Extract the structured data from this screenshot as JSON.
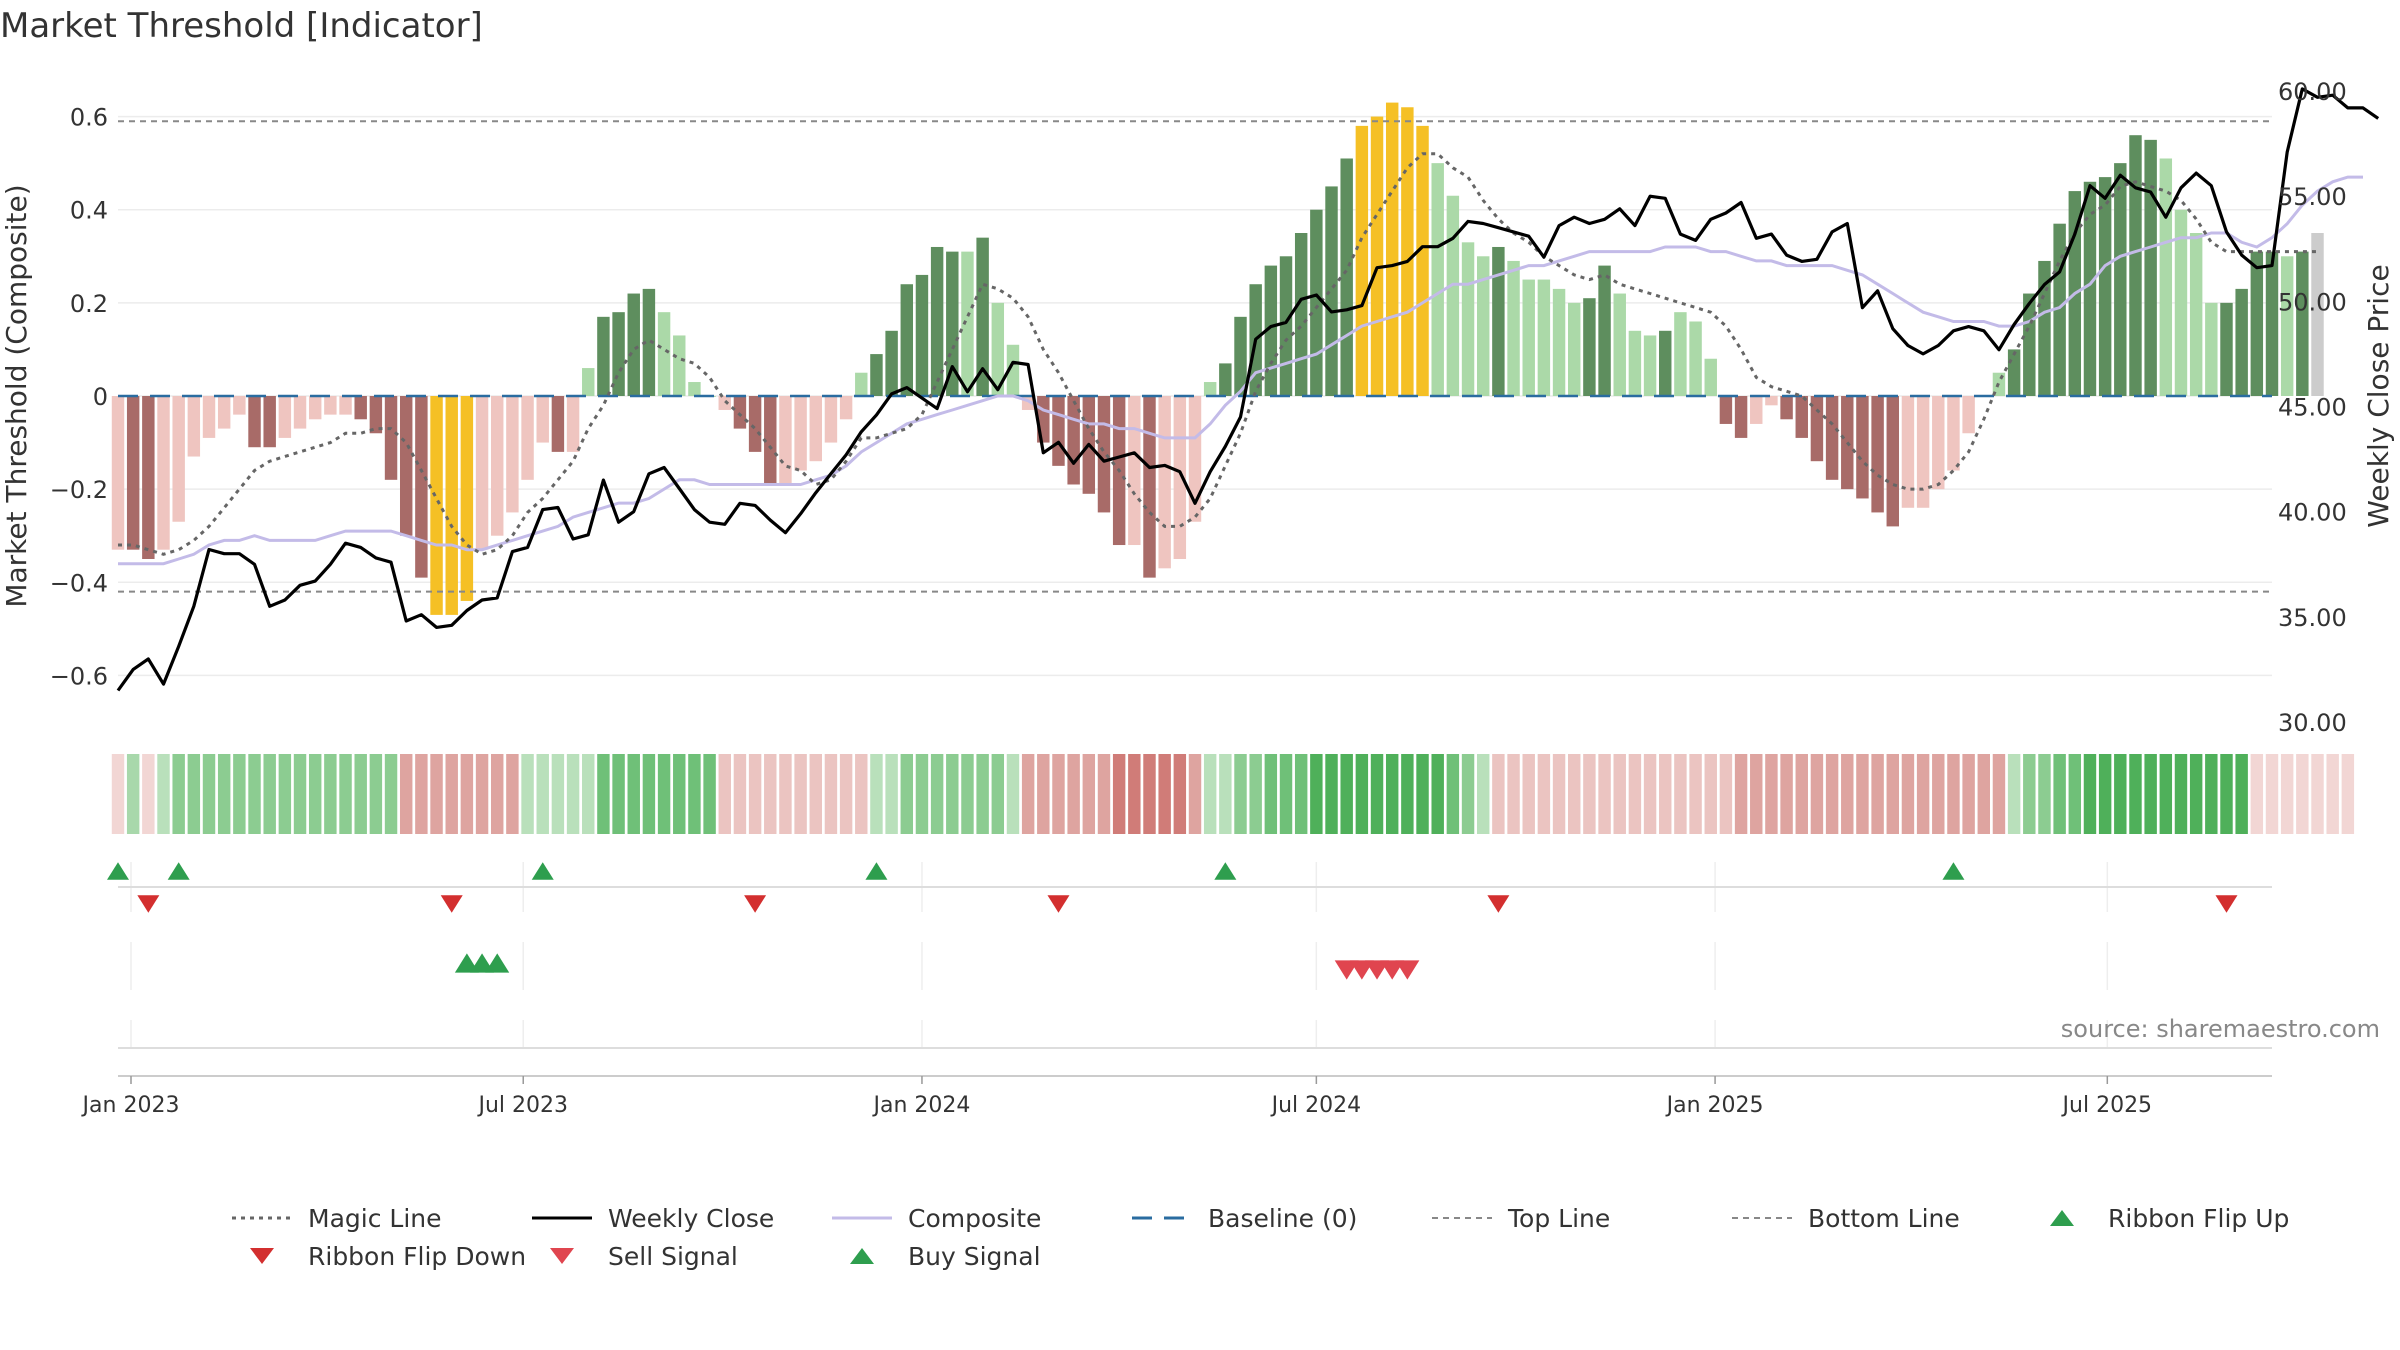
{
  "title": "Market Threshold [Indicator]",
  "source": "source: sharemaestro.com",
  "chart_data": {
    "type": "bar",
    "title": "Market Threshold [Indicator]",
    "ylabel": "Market Threshold (Composite)",
    "ylabel_right": "Weekly Close Price",
    "ylim": [
      -0.7,
      0.7
    ],
    "ylim_right": [
      30,
      61
    ],
    "yticks": [
      -0.6,
      -0.4,
      -0.2,
      0,
      0.2,
      0.4,
      0.6
    ],
    "ytick_labels": [
      "−0.6",
      "−0.4",
      "−0.2",
      "0",
      "0.2",
      "0.4",
      "0.6"
    ],
    "yticks_right": [
      30,
      35,
      40,
      45,
      50,
      55,
      60
    ],
    "ytick_labels_right": [
      "30.00",
      "35.00",
      "40.00",
      "45.00",
      "50.00",
      "55.00",
      "60.00"
    ],
    "xlim": [
      "2022-12-26",
      "2025-09-15"
    ],
    "x_ticks": [
      "2023-01-01",
      "2023-07-01",
      "2024-01-01",
      "2024-07-01",
      "2025-01-01",
      "2025-07-01"
    ],
    "x_tick_labels": [
      "Jan 2023",
      "Jul 2023",
      "Jan 2024",
      "Jul 2024",
      "Jan 2025",
      "Jul 2025"
    ],
    "grid": true,
    "legend_position": "bottom",
    "top_line": 0.59,
    "bottom_line": -0.42,
    "baseline": 0,
    "start_date": "2022-12-26",
    "composite_histogram": [
      -0.33,
      -0.33,
      -0.35,
      -0.33,
      -0.27,
      -0.13,
      -0.09,
      -0.07,
      -0.04,
      -0.11,
      -0.11,
      -0.09,
      -0.07,
      -0.05,
      -0.04,
      -0.04,
      -0.05,
      -0.08,
      -0.18,
      -0.3,
      -0.39,
      -0.47,
      -0.47,
      -0.44,
      -0.33,
      -0.3,
      -0.25,
      -0.18,
      -0.1,
      -0.12,
      -0.12,
      0.06,
      0.17,
      0.18,
      0.22,
      0.23,
      0.18,
      0.13,
      0.03,
      0.0,
      -0.03,
      -0.07,
      -0.12,
      -0.19,
      -0.19,
      -0.16,
      -0.14,
      -0.1,
      -0.05,
      0.05,
      0.09,
      0.14,
      0.24,
      0.26,
      0.32,
      0.31,
      0.31,
      0.34,
      0.2,
      0.11,
      -0.03,
      -0.1,
      -0.15,
      -0.19,
      -0.21,
      -0.25,
      -0.32,
      -0.32,
      -0.39,
      -0.37,
      -0.35,
      -0.27,
      0.03,
      0.07,
      0.17,
      0.24,
      0.28,
      0.3,
      0.35,
      0.4,
      0.45,
      0.51,
      0.58,
      0.6,
      0.63,
      0.62,
      0.58,
      0.5,
      0.43,
      0.33,
      0.3,
      0.32,
      0.29,
      0.25,
      0.25,
      0.23,
      0.2,
      0.21,
      0.28,
      0.22,
      0.14,
      0.13,
      0.14,
      0.18,
      0.16,
      0.08,
      -0.06,
      -0.09,
      -0.06,
      -0.02,
      -0.05,
      -0.09,
      -0.14,
      -0.18,
      -0.2,
      -0.22,
      -0.25,
      -0.28,
      -0.24,
      -0.24,
      -0.2,
      -0.16,
      -0.08,
      0.0,
      0.05,
      0.1,
      0.22,
      0.29,
      0.37,
      0.44,
      0.46,
      0.47,
      0.5,
      0.56,
      0.55,
      0.51,
      0.4,
      0.35,
      0.2,
      0.2,
      0.23,
      0.31,
      0.31,
      0.3,
      0.31,
      0.35
    ],
    "weekly_close": [
      31.5,
      32.5,
      33.0,
      31.8,
      33.6,
      35.5,
      38.2,
      38.0,
      38.0,
      37.5,
      35.5,
      35.8,
      36.5,
      36.7,
      37.5,
      38.5,
      38.3,
      37.8,
      37.6,
      34.8,
      35.1,
      34.5,
      34.6,
      35.3,
      35.8,
      35.9,
      38.1,
      38.3,
      40.1,
      40.2,
      38.7,
      38.9,
      41.5,
      39.5,
      40.0,
      41.8,
      42.1,
      41.1,
      40.1,
      39.5,
      39.4,
      40.4,
      40.3,
      39.6,
      39.0,
      39.9,
      40.9,
      41.8,
      42.7,
      43.8,
      44.6,
      45.6,
      45.9,
      45.4,
      44.9,
      46.9,
      45.7,
      46.8,
      45.8,
      47.1,
      47.0,
      42.8,
      43.3,
      42.3,
      43.2,
      42.4,
      42.6,
      42.8,
      42.1,
      42.2,
      41.9,
      40.4,
      41.9,
      43.1,
      44.5,
      48.2,
      48.8,
      49.0,
      50.1,
      50.3,
      49.5,
      49.6,
      49.8,
      51.6,
      51.7,
      51.9,
      52.6,
      52.6,
      53.0,
      53.8,
      53.7,
      53.5,
      53.3,
      53.1,
      52.1,
      53.6,
      54.0,
      53.7,
      53.9,
      54.4,
      53.6,
      55.0,
      54.9,
      53.2,
      52.9,
      53.9,
      54.2,
      54.7,
      53.0,
      53.2,
      52.2,
      51.9,
      52.0,
      53.3,
      53.7,
      49.7,
      50.5,
      48.7,
      47.9,
      47.5,
      47.9,
      48.6,
      48.8,
      48.6,
      47.7,
      48.9,
      49.9,
      50.8,
      51.4,
      53.2,
      55.5,
      54.9,
      56.0,
      55.4,
      55.2,
      54.0,
      55.4,
      56.1,
      55.5,
      53.3,
      52.2,
      51.6,
      51.7,
      57.1,
      60.1,
      59.7,
      59.8,
      59.2,
      59.2,
      58.7
    ],
    "composite_line": [
      -0.36,
      -0.36,
      -0.36,
      -0.36,
      -0.35,
      -0.34,
      -0.32,
      -0.31,
      -0.31,
      -0.3,
      -0.31,
      -0.31,
      -0.31,
      -0.31,
      -0.3,
      -0.29,
      -0.29,
      -0.29,
      -0.29,
      -0.3,
      -0.31,
      -0.32,
      -0.32,
      -0.33,
      -0.33,
      -0.32,
      -0.31,
      -0.3,
      -0.29,
      -0.28,
      -0.26,
      -0.25,
      -0.24,
      -0.23,
      -0.23,
      -0.22,
      -0.2,
      -0.18,
      -0.18,
      -0.19,
      -0.19,
      -0.19,
      -0.19,
      -0.19,
      -0.19,
      -0.19,
      -0.18,
      -0.17,
      -0.15,
      -0.12,
      -0.1,
      -0.08,
      -0.06,
      -0.05,
      -0.04,
      -0.03,
      -0.02,
      -0.01,
      0.0,
      0.0,
      -0.01,
      -0.03,
      -0.04,
      -0.05,
      -0.06,
      -0.06,
      -0.07,
      -0.07,
      -0.08,
      -0.09,
      -0.09,
      -0.09,
      -0.06,
      -0.02,
      0.01,
      0.05,
      0.06,
      0.07,
      0.08,
      0.09,
      0.11,
      0.13,
      0.15,
      0.16,
      0.17,
      0.18,
      0.2,
      0.22,
      0.24,
      0.24,
      0.25,
      0.26,
      0.27,
      0.28,
      0.28,
      0.29,
      0.3,
      0.31,
      0.31,
      0.31,
      0.31,
      0.31,
      0.32,
      0.32,
      0.32,
      0.31,
      0.31,
      0.3,
      0.29,
      0.29,
      0.28,
      0.28,
      0.28,
      0.28,
      0.27,
      0.26,
      0.24,
      0.22,
      0.2,
      0.18,
      0.17,
      0.16,
      0.16,
      0.16,
      0.15,
      0.15,
      0.16,
      0.18,
      0.19,
      0.22,
      0.24,
      0.28,
      0.3,
      0.31,
      0.32,
      0.33,
      0.34,
      0.34,
      0.35,
      0.35,
      0.33,
      0.32,
      0.34,
      0.37,
      0.41,
      0.44,
      0.46,
      0.47,
      0.47
    ],
    "magic_line": [
      -0.32,
      -0.32,
      -0.33,
      -0.34,
      -0.33,
      -0.31,
      -0.28,
      -0.24,
      -0.2,
      -0.16,
      -0.14,
      -0.13,
      -0.12,
      -0.11,
      -0.1,
      -0.08,
      -0.08,
      -0.07,
      -0.07,
      -0.1,
      -0.16,
      -0.22,
      -0.28,
      -0.32,
      -0.34,
      -0.33,
      -0.3,
      -0.25,
      -0.22,
      -0.18,
      -0.14,
      -0.07,
      -0.02,
      0.05,
      0.1,
      0.12,
      0.1,
      0.08,
      0.07,
      0.04,
      -0.01,
      -0.04,
      -0.07,
      -0.11,
      -0.15,
      -0.16,
      -0.19,
      -0.18,
      -0.14,
      -0.09,
      -0.09,
      -0.08,
      -0.07,
      -0.04,
      0.03,
      0.1,
      0.17,
      0.24,
      0.23,
      0.21,
      0.17,
      0.1,
      0.05,
      -0.01,
      -0.07,
      -0.12,
      -0.16,
      -0.21,
      -0.25,
      -0.28,
      -0.28,
      -0.26,
      -0.22,
      -0.15,
      -0.08,
      0.01,
      0.07,
      0.12,
      0.15,
      0.19,
      0.23,
      0.27,
      0.34,
      0.39,
      0.44,
      0.49,
      0.52,
      0.52,
      0.49,
      0.47,
      0.42,
      0.38,
      0.35,
      0.33,
      0.3,
      0.28,
      0.26,
      0.25,
      0.26,
      0.24,
      0.23,
      0.22,
      0.21,
      0.2,
      0.19,
      0.18,
      0.15,
      0.1,
      0.04,
      0.02,
      0.01,
      0.0,
      -0.03,
      -0.06,
      -0.1,
      -0.14,
      -0.17,
      -0.19,
      -0.2,
      -0.2,
      -0.19,
      -0.16,
      -0.12,
      -0.05,
      0.03,
      0.09,
      0.15,
      0.22,
      0.29,
      0.35,
      0.39,
      0.41,
      0.45,
      0.46,
      0.45,
      0.44,
      0.42,
      0.38,
      0.33,
      0.31,
      0.31,
      0.31,
      0.31,
      0.31,
      0.31,
      0.31
    ],
    "bar_colors": [
      "#efc5c0",
      "#a86b68",
      "#a86b68",
      "#efc5c0",
      "#efc5c0",
      "#efc5c0",
      "#efc5c0",
      "#efc5c0",
      "#efc5c0",
      "#a86b68",
      "#a86b68",
      "#efc5c0",
      "#efc5c0",
      "#efc5c0",
      "#efc5c0",
      "#efc5c0",
      "#a86b68",
      "#a86b68",
      "#a86b68",
      "#a86b68",
      "#a86b68",
      "#f5c025",
      "#f5c025",
      "#f5c025",
      "#efc5c0",
      "#efc5c0",
      "#efc5c0",
      "#efc5c0",
      "#efc5c0",
      "#a86b68",
      "#efc5c0",
      "#abd9a8",
      "#5e8e5e",
      "#5e8e5e",
      "#5e8e5e",
      "#5e8e5e",
      "#abd9a8",
      "#abd9a8",
      "#abd9a8",
      "#abd9a8",
      "#efc5c0",
      "#a86b68",
      "#a86b68",
      "#a86b68",
      "#efc5c0",
      "#efc5c0",
      "#efc5c0",
      "#efc5c0",
      "#efc5c0",
      "#abd9a8",
      "#5e8e5e",
      "#5e8e5e",
      "#5e8e5e",
      "#5e8e5e",
      "#5e8e5e",
      "#5e8e5e",
      "#abd9a8",
      "#5e8e5e",
      "#abd9a8",
      "#abd9a8",
      "#efc5c0",
      "#a86b68",
      "#a86b68",
      "#a86b68",
      "#a86b68",
      "#a86b68",
      "#a86b68",
      "#efc5c0",
      "#a86b68",
      "#efc5c0",
      "#efc5c0",
      "#efc5c0",
      "#abd9a8",
      "#5e8e5e",
      "#5e8e5e",
      "#5e8e5e",
      "#5e8e5e",
      "#5e8e5e",
      "#5e8e5e",
      "#5e8e5e",
      "#5e8e5e",
      "#5e8e5e",
      "#f5c025",
      "#f5c025",
      "#f5c025",
      "#f5c025",
      "#f5c025",
      "#abd9a8",
      "#abd9a8",
      "#abd9a8",
      "#abd9a8",
      "#5e8e5e",
      "#abd9a8",
      "#abd9a8",
      "#abd9a8",
      "#abd9a8",
      "#abd9a8",
      "#5e8e5e",
      "#5e8e5e",
      "#abd9a8",
      "#abd9a8",
      "#abd9a8",
      "#5e8e5e",
      "#abd9a8",
      "#abd9a8",
      "#abd9a8",
      "#a86b68",
      "#a86b68",
      "#efc5c0",
      "#efc5c0",
      "#a86b68",
      "#a86b68",
      "#a86b68",
      "#a86b68",
      "#a86b68",
      "#a86b68",
      "#a86b68",
      "#a86b68",
      "#efc5c0",
      "#efc5c0",
      "#efc5c0",
      "#efc5c0",
      "#efc5c0",
      "#efc5c0",
      "#abd9a8",
      "#5e8e5e",
      "#5e8e5e",
      "#5e8e5e",
      "#5e8e5e",
      "#5e8e5e",
      "#5e8e5e",
      "#5e8e5e",
      "#5e8e5e",
      "#5e8e5e",
      "#5e8e5e",
      "#abd9a8",
      "#abd9a8",
      "#abd9a8",
      "#abd9a8",
      "#5e8e5e",
      "#5e8e5e",
      "#5e8e5e",
      "#5e8e5e",
      "#abd9a8",
      "#5e8e5e"
    ],
    "ribbon_colors": [
      "#f2d6d4",
      "#a8d8ab",
      "#f2d6d4",
      "#b9e0bb",
      "#8ccc91",
      "#8ccc91",
      "#8ccc91",
      "#8ccc91",
      "#8ccc91",
      "#8ccc91",
      "#8ccc91",
      "#8ccc91",
      "#8ccc91",
      "#8ccc91",
      "#8ccc91",
      "#8ccc91",
      "#8ccc91",
      "#8ccc91",
      "#8ccc91",
      "#dea4a0",
      "#dea4a0",
      "#dea4a0",
      "#dea4a0",
      "#dea4a0",
      "#dea4a0",
      "#dea4a0",
      "#dea4a0",
      "#b9e0bb",
      "#b9e0bb",
      "#b9e0bb",
      "#b9e0bb",
      "#b9e0bb",
      "#6fc078",
      "#6fc078",
      "#6fc078",
      "#6fc078",
      "#6fc078",
      "#6fc078",
      "#6fc078",
      "#6fc078",
      "#ebc4c1",
      "#ebc4c1",
      "#ebc4c1",
      "#ebc4c1",
      "#ebc4c1",
      "#ebc4c1",
      "#ebc4c1",
      "#ebc4c1",
      "#ebc4c1",
      "#ebc4c1",
      "#b9e0bb",
      "#b9e0bb",
      "#8ccc91",
      "#8ccc91",
      "#8ccc91",
      "#8ccc91",
      "#8ccc91",
      "#8ccc91",
      "#8ccc91",
      "#b9e0bb",
      "#dea4a0",
      "#dea4a0",
      "#dea4a0",
      "#dea4a0",
      "#dea4a0",
      "#dea4a0",
      "#d07c78",
      "#d07c78",
      "#d07c78",
      "#d07c78",
      "#d07c78",
      "#dea4a0",
      "#b9e0bb",
      "#b9e0bb",
      "#8ccc91",
      "#8ccc91",
      "#6fc078",
      "#6fc078",
      "#6fc078",
      "#4fb05a",
      "#4fb05a",
      "#4fb05a",
      "#4fb05a",
      "#4fb05a",
      "#4fb05a",
      "#4fb05a",
      "#4fb05a",
      "#4fb05a",
      "#6fc078",
      "#8ccc91",
      "#b9e0bb",
      "#ebc4c1",
      "#ebc4c1",
      "#ebc4c1",
      "#ebc4c1",
      "#ebc4c1",
      "#ebc4c1",
      "#ebc4c1",
      "#ebc4c1",
      "#ebc4c1",
      "#ebc4c1",
      "#ebc4c1",
      "#ebc4c1",
      "#ebc4c1",
      "#ebc4c1",
      "#ebc4c1",
      "#ebc4c1",
      "#dea4a0",
      "#dea4a0",
      "#dea4a0",
      "#dea4a0",
      "#dea4a0",
      "#dea4a0",
      "#dea4a0",
      "#dea4a0",
      "#dea4a0",
      "#dea4a0",
      "#dea4a0",
      "#dea4a0",
      "#dea4a0",
      "#dea4a0",
      "#dea4a0",
      "#dea4a0",
      "#dea4a0",
      "#dea4a0",
      "#b9e0bb",
      "#8ccc91",
      "#8ccc91",
      "#6fc078",
      "#6fc078",
      "#4fb05a",
      "#4fb05a",
      "#4fb05a",
      "#4fb05a",
      "#4fb05a",
      "#4fb05a",
      "#4fb05a",
      "#4fb05a",
      "#4fb05a",
      "#4fb05a",
      "#4fb05a",
      "#f2d6d4",
      "#f2d6d4",
      "#f2d6d4",
      "#f2d6d4",
      "#f2d6d4",
      "#f2d6d4",
      "#f2d6d4"
    ],
    "ribbon_flip_up": [
      "2022-12-26",
      "2023-01-23",
      "2023-07-10",
      "2023-12-11",
      "2024-05-20",
      "2025-04-21"
    ],
    "ribbon_flip_down": [
      "2023-01-09",
      "2023-05-29",
      "2023-10-16",
      "2024-03-04",
      "2024-09-23",
      "2025-08-25"
    ],
    "buy_signals": [
      "2023-06-05",
      "2023-06-12",
      "2023-06-19"
    ],
    "sell_signals": [
      "2024-07-15",
      "2024-07-22",
      "2024-07-29",
      "2024-08-05",
      "2024-08-12"
    ],
    "legend": [
      {
        "label": "Magic Line",
        "style": "dotted",
        "color": "#666666"
      },
      {
        "label": "Weekly Close",
        "style": "solid",
        "color": "#000000"
      },
      {
        "label": "Composite",
        "style": "solid",
        "color": "#c3bbe8"
      },
      {
        "label": "Baseline (0)",
        "style": "dashed",
        "color": "#2a6ca0"
      },
      {
        "label": "Top Line",
        "style": "dashed-thin",
        "color": "#888888"
      },
      {
        "label": "Bottom Line",
        "style": "dashed-thin",
        "color": "#888888"
      },
      {
        "label": "Ribbon Flip Up",
        "style": "triangle-up",
        "color": "#2e9e4e"
      },
      {
        "label": "Ribbon Flip Down",
        "style": "triangle-down",
        "color": "#d32f2f"
      },
      {
        "label": "Sell Signal",
        "style": "triangle-down",
        "color": "#e0454f"
      },
      {
        "label": "Buy Signal",
        "style": "triangle-up",
        "color": "#2e9e4e"
      }
    ]
  }
}
